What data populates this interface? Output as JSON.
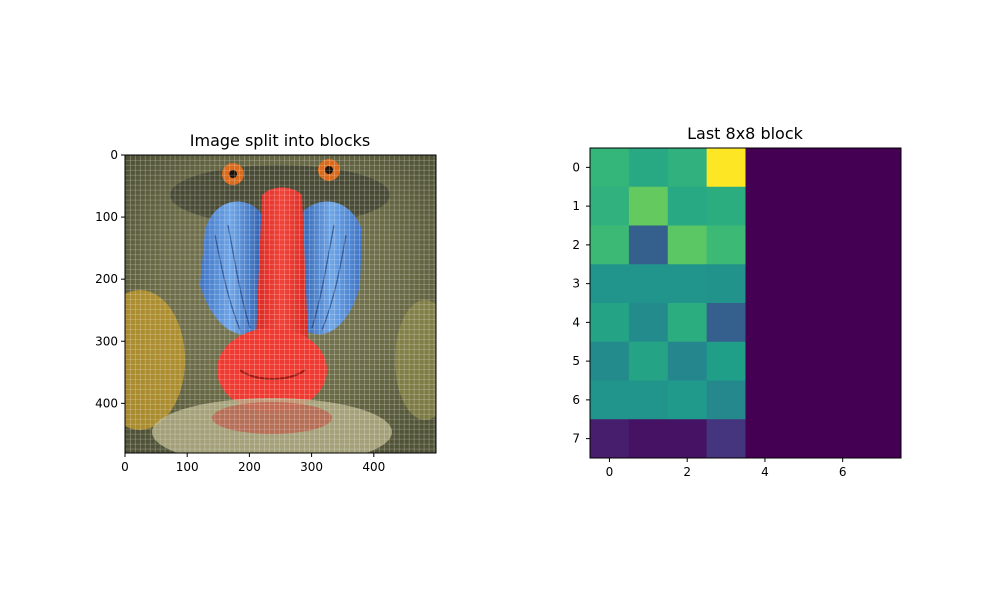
{
  "chart_data": [
    {
      "type": "image",
      "title": "Image split into blocks",
      "image_description": "photo",
      "xlim": [
        0,
        500
      ],
      "ylim": [
        480,
        0
      ],
      "x_ticks": [
        0,
        100,
        200,
        300,
        400
      ],
      "y_ticks": [
        0,
        100,
        200,
        300,
        400
      ],
      "grid": "white block lines every 8 px"
    },
    {
      "type": "heatmap",
      "title": "Last 8x8 block",
      "rows": 8,
      "cols": 8,
      "x_ticks": [
        0,
        2,
        4,
        6
      ],
      "y_ticks": [
        0,
        1,
        2,
        3,
        4,
        5,
        6,
        7
      ],
      "colormap": "viridis",
      "values": [
        [
          0.66,
          0.6,
          0.64,
          1.0,
          0.0,
          0.0,
          0.0,
          0.0
        ],
        [
          0.64,
          0.76,
          0.6,
          0.62,
          0.0,
          0.0,
          0.0,
          0.0
        ],
        [
          0.68,
          0.3,
          0.74,
          0.68,
          0.0,
          0.0,
          0.0,
          0.0
        ],
        [
          0.52,
          0.52,
          0.52,
          0.51,
          0.0,
          0.0,
          0.0,
          0.0
        ],
        [
          0.58,
          0.48,
          0.62,
          0.3,
          0.0,
          0.0,
          0.0,
          0.0
        ],
        [
          0.48,
          0.58,
          0.46,
          0.56,
          0.0,
          0.0,
          0.0,
          0.0
        ],
        [
          0.52,
          0.52,
          0.54,
          0.47,
          0.0,
          0.0,
          0.0,
          0.0
        ],
        [
          0.08,
          0.05,
          0.05,
          0.15,
          0.0,
          0.0,
          0.0,
          0.0
        ]
      ]
    }
  ]
}
